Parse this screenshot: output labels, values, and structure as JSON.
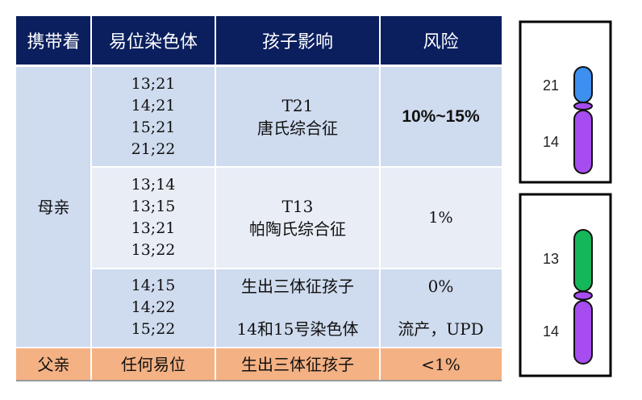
{
  "table": {
    "headers": [
      "携带着",
      "易位染色体",
      "孩子影响",
      "风险"
    ],
    "mother": {
      "carrier": "母亲",
      "groups": [
        {
          "translocations": [
            "13;21",
            "14;21",
            "15;21",
            "21;22"
          ],
          "effect_lines": [
            "T21",
            "唐氏综合征"
          ],
          "risk": "10%~15%"
        },
        {
          "translocations": [
            "13;14",
            "13;15",
            "13;21",
            "13;22"
          ],
          "effect_lines": [
            "T13",
            "帕陶氏综合征"
          ],
          "risk": "1%"
        },
        {
          "translocations": [
            "14;15",
            "14;22",
            "15;22"
          ],
          "effect_lines": [
            "生出三体征孩子",
            "14和15号染色体"
          ],
          "risk_lines": [
            "0%",
            "流产，UPD"
          ]
        }
      ]
    },
    "father": {
      "carrier": "父亲",
      "translocation": "任何易位",
      "effect": "生出三体征孩子",
      "risk": "<1%"
    }
  },
  "diagrams": [
    {
      "top_label": "21",
      "bottom_label": "14",
      "top_color": "#3d8ff0",
      "bottom_color": "#a64cf0"
    },
    {
      "top_label": "13",
      "bottom_label": "14",
      "top_color": "#14b85a",
      "bottom_color": "#a64cf0"
    }
  ],
  "colors": {
    "header": "#0b1f5e",
    "band_dark": "#cfdbee",
    "band_light": "#e8edf6",
    "father_row": "#f4b183"
  }
}
